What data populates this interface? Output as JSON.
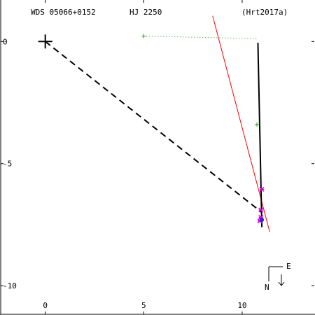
{
  "header": {
    "wds": "WDS 05066+0152",
    "name": "HJ 2250",
    "ref": "(Hrt2017a)"
  },
  "compass": {
    "east": "E",
    "north": "N"
  },
  "chart_data": {
    "type": "scatter",
    "title": "",
    "xlim": [
      -2.3,
      13.7
    ],
    "ylim": [
      1.7,
      -11.2
    ],
    "x_ticks": [
      0,
      5,
      10
    ],
    "y_ticks": [
      0,
      -5,
      -10
    ],
    "x_tick_labels": [
      "0",
      "5",
      "10"
    ],
    "y_tick_labels": [
      "0",
      "-5",
      "-10"
    ],
    "primary": [
      0,
      0
    ],
    "dashed_line": [
      [
        0,
        0
      ],
      [
        11.0,
        -7.0
      ]
    ],
    "orbit_path": [
      [
        10.8,
        -0.05
      ],
      [
        11.0,
        -7.6
      ]
    ],
    "red_line": [
      [
        8.5,
        1.05
      ],
      [
        11.4,
        -7.8
      ]
    ],
    "dotted_line": [
      [
        5.0,
        0.22
      ],
      [
        10.8,
        0.12
      ]
    ],
    "green_points": [
      [
        5.0,
        0.22
      ],
      [
        10.75,
        -3.4
      ]
    ],
    "magenta_points": [
      [
        11.0,
        -6.05
      ],
      [
        10.95,
        -6.9
      ],
      [
        10.95,
        -7.2
      ],
      [
        10.9,
        -7.35
      ]
    ],
    "blue_points": [
      [
        11.0,
        -7.3
      ]
    ],
    "colors": {
      "axis": "#000000",
      "red_line": "#ff0000",
      "dotted": "#00aa00",
      "green": "#00aa00",
      "magenta": "#dd00dd",
      "blue": "#2222ff"
    }
  }
}
